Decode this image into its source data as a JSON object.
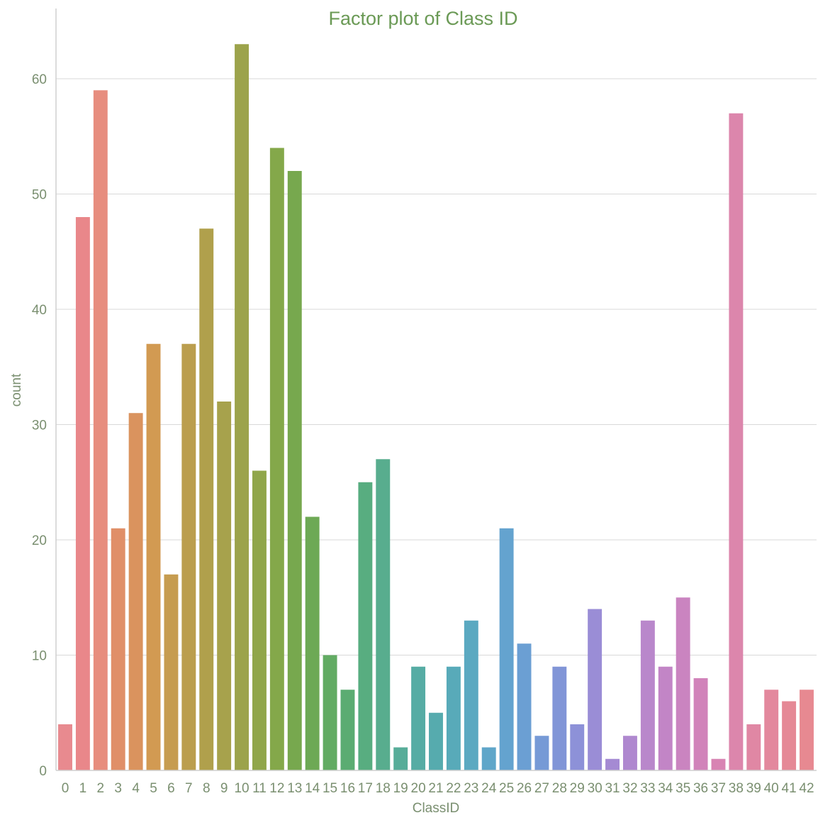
{
  "chart_data": {
    "type": "bar",
    "title": "Factor plot of Class ID",
    "xlabel": "ClassID",
    "ylabel": "count",
    "ylim": [
      0,
      66
    ],
    "yticks": [
      0,
      10,
      20,
      30,
      40,
      50,
      60
    ],
    "grid": true,
    "categories": [
      "0",
      "1",
      "2",
      "3",
      "4",
      "5",
      "6",
      "7",
      "8",
      "9",
      "10",
      "11",
      "12",
      "13",
      "14",
      "15",
      "16",
      "17",
      "18",
      "19",
      "20",
      "21",
      "22",
      "23",
      "24",
      "25",
      "26",
      "27",
      "28",
      "29",
      "30",
      "31",
      "32",
      "33",
      "34",
      "35",
      "36",
      "37",
      "38",
      "39",
      "40",
      "41",
      "42"
    ],
    "values": [
      4,
      48,
      59,
      21,
      31,
      37,
      17,
      37,
      47,
      32,
      63,
      26,
      54,
      52,
      22,
      10,
      7,
      25,
      27,
      2,
      9,
      5,
      9,
      13,
      2,
      21,
      11,
      3,
      9,
      4,
      14,
      1,
      3,
      13,
      9,
      15,
      8,
      1,
      57,
      4,
      7,
      6,
      7
    ],
    "colors": [
      "#e88a8f",
      "#e9878a",
      "#e78d7e",
      "#e08f68",
      "#da935e",
      "#d29a52",
      "#c69c50",
      "#bb9e4e",
      "#b0a04c",
      "#a7a24c",
      "#9ca34b",
      "#90a64a",
      "#84a84a",
      "#77a84e",
      "#6da955",
      "#62ab63",
      "#5bac72",
      "#58ad80",
      "#58ad8e",
      "#57ad99",
      "#56aca4",
      "#56abae",
      "#58aab9",
      "#5ba9c1",
      "#5fa6c9",
      "#64a3cf",
      "#6b9fd3",
      "#769ad6",
      "#8195d7",
      "#8d91d8",
      "#9a8dd6",
      "#a58ad3",
      "#af88cf",
      "#b987cb",
      "#c285c6",
      "#ca84c0",
      "#d183ba",
      "#d884b3",
      "#dc86ac",
      "#e087a4",
      "#e3889d",
      "#e58996",
      "#e78991"
    ]
  }
}
